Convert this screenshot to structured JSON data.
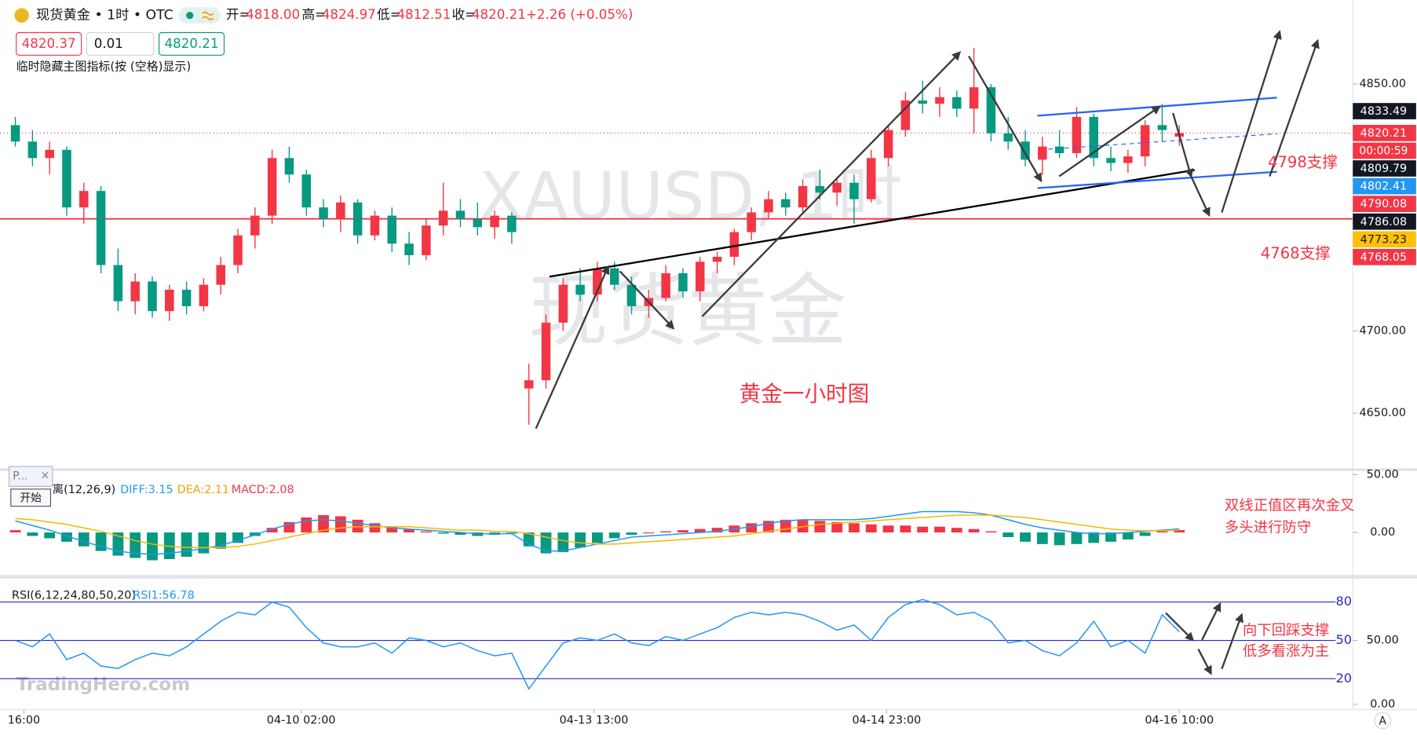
{
  "header": {
    "title": "现货黄金 • 1时 • OTC",
    "ohlc": [
      {
        "label": "开=",
        "value": "4818.00"
      },
      {
        "label": "高=",
        "value": "4824.97"
      },
      {
        "label": "低=",
        "value": "4812.51"
      },
      {
        "label": "收=",
        "value": "4820.21"
      }
    ],
    "change": "+2.26 (+0.05%)",
    "bid": "4820.37",
    "size": "0.01",
    "ask": "4820.21",
    "hint": "临时隐藏主图指标(按 (空格)显示)"
  },
  "watermark": {
    "symbol": "XAUUSD, 1时",
    "name": "现货黄金"
  },
  "popup": {
    "title": "P...",
    "close": "×",
    "button": "开始"
  },
  "footer": {
    "logo": "TradingHero.com",
    "auto": "A"
  },
  "chart_data": {
    "type": "candlestick",
    "up_color": "#f23645",
    "down_color": "#089981",
    "candles": [
      [
        4825,
        4830,
        4812,
        4815
      ],
      [
        4815,
        4822,
        4800,
        4805
      ],
      [
        4805,
        4815,
        4795,
        4810
      ],
      [
        4810,
        4812,
        4770,
        4775
      ],
      [
        4775,
        4790,
        4765,
        4785
      ],
      [
        4785,
        4788,
        4735,
        4740
      ],
      [
        4740,
        4750,
        4712,
        4718
      ],
      [
        4718,
        4735,
        4710,
        4730
      ],
      [
        4730,
        4733,
        4708,
        4712
      ],
      [
        4712,
        4728,
        4706,
        4725
      ],
      [
        4725,
        4730,
        4710,
        4715
      ],
      [
        4715,
        4732,
        4712,
        4728
      ],
      [
        4728,
        4745,
        4722,
        4740
      ],
      [
        4740,
        4762,
        4735,
        4758
      ],
      [
        4758,
        4775,
        4750,
        4770
      ],
      [
        4770,
        4810,
        4765,
        4805
      ],
      [
        4805,
        4812,
        4790,
        4795
      ],
      [
        4795,
        4798,
        4770,
        4775
      ],
      [
        4775,
        4780,
        4763,
        4768
      ],
      [
        4768,
        4782,
        4760,
        4778
      ],
      [
        4778,
        4780,
        4753,
        4758
      ],
      [
        4758,
        4773,
        4755,
        4770
      ],
      [
        4770,
        4775,
        4748,
        4753
      ],
      [
        4753,
        4760,
        4740,
        4746
      ],
      [
        4746,
        4768,
        4743,
        4764
      ],
      [
        4764,
        4790,
        4758,
        4773
      ],
      [
        4773,
        4780,
        4763,
        4768
      ],
      [
        4768,
        4778,
        4758,
        4763
      ],
      [
        4763,
        4773,
        4756,
        4770
      ],
      [
        4770,
        4772,
        4753,
        4760
      ],
      [
        4665,
        4680,
        4643,
        4670
      ],
      [
        4670,
        4710,
        4665,
        4705
      ],
      [
        4705,
        4732,
        4700,
        4728
      ],
      [
        4728,
        4738,
        4718,
        4722
      ],
      [
        4722,
        4742,
        4718,
        4738
      ],
      [
        4738,
        4742,
        4725,
        4728
      ],
      [
        4728,
        4733,
        4710,
        4715
      ],
      [
        4715,
        4725,
        4708,
        4720
      ],
      [
        4720,
        4740,
        4718,
        4735
      ],
      [
        4735,
        4738,
        4720,
        4724
      ],
      [
        4724,
        4745,
        4718,
        4742
      ],
      [
        4742,
        4748,
        4735,
        4745
      ],
      [
        4745,
        4762,
        4740,
        4760
      ],
      [
        4760,
        4775,
        4755,
        4772
      ],
      [
        4772,
        4785,
        4768,
        4780
      ],
      [
        4780,
        4784,
        4770,
        4775
      ],
      [
        4775,
        4792,
        4772,
        4788
      ],
      [
        4788,
        4798,
        4780,
        4784
      ],
      [
        4784,
        4792,
        4776,
        4790
      ],
      [
        4790,
        4795,
        4765,
        4780
      ],
      [
        4780,
        4810,
        4778,
        4805
      ],
      [
        4805,
        4825,
        4800,
        4822
      ],
      [
        4822,
        4845,
        4818,
        4840
      ],
      [
        4840,
        4852,
        4832,
        4838
      ],
      [
        4838,
        4848,
        4830,
        4842
      ],
      [
        4842,
        4846,
        4830,
        4835
      ],
      [
        4835,
        4872,
        4820,
        4848
      ],
      [
        4848,
        4850,
        4815,
        4820
      ],
      [
        4820,
        4830,
        4810,
        4815
      ],
      [
        4815,
        4822,
        4800,
        4804
      ],
      [
        4804,
        4818,
        4795,
        4812
      ],
      [
        4812,
        4822,
        4805,
        4808
      ],
      [
        4808,
        4836,
        4805,
        4830
      ],
      [
        4830,
        4832,
        4800,
        4805
      ],
      [
        4805,
        4812,
        4797,
        4802
      ],
      [
        4802,
        4810,
        4796,
        4806
      ],
      [
        4806,
        4828,
        4800,
        4825
      ],
      [
        4825,
        4838,
        4815,
        4822
      ],
      [
        4818.0,
        4824.97,
        4812.51,
        4820.21
      ]
    ],
    "ylim": [
      4616.5,
      4901
    ],
    "yticks": [
      {
        "value": 4850,
        "label": "4850.00"
      },
      {
        "value": 4700,
        "label": "4700.00"
      },
      {
        "value": 4650,
        "label": "4650.00"
      }
    ],
    "xticks": [
      {
        "value": 0.5,
        "label": "16:00"
      },
      {
        "value": 16.7,
        "label": "04-10 02:00"
      },
      {
        "value": 33.8,
        "label": "04-13 13:00"
      },
      {
        "value": 50.9,
        "label": "04-14 23:00"
      },
      {
        "value": 68,
        "label": "04-16 10:00"
      }
    ],
    "price_tags": [
      {
        "value": 4833.49,
        "color": "#131722"
      },
      {
        "value": 4820.21,
        "color": "#f23645",
        "line": "dotted",
        "countdown": "00:00:59"
      },
      {
        "value": 4809.79,
        "color": "#131722"
      },
      {
        "value": 4802.41,
        "color": "#2196f3"
      },
      {
        "value": 4790.08,
        "color": "#f23645"
      },
      {
        "value": 4786.08,
        "color": "#131722"
      },
      {
        "value": 4773.23,
        "color": "#ffc107",
        "text_color": "#131722"
      },
      {
        "value": 4768.05,
        "color": "#f23645",
        "line": "solid"
      }
    ],
    "annotations": [
      "黄金一小时图",
      "4798支撑",
      "4768支撑",
      "双线正值区再次金叉",
      "多头进行防守",
      "向下回踩支撑",
      "低多看涨为主"
    ],
    "macd": {
      "title": "离(12,26,9)",
      "diff_label": "DIFF:3.15",
      "dea_label": "DEA:2.11",
      "macd_label": "MACD:2.08",
      "diff_color": "#2196f3",
      "dea_color": "#f5b800",
      "hist": [
        2,
        -3,
        -5,
        -8,
        -12,
        -16,
        -20,
        -22,
        -24,
        -23,
        -21,
        -18,
        -14,
        -9,
        -3,
        4,
        9,
        13,
        15,
        14,
        11,
        8,
        5,
        3,
        1,
        -1,
        -2,
        -3,
        -2,
        -1,
        -12,
        -18,
        -17,
        -13,
        -9,
        -5,
        -2,
        0,
        1,
        2,
        3,
        4,
        6,
        8,
        10,
        11,
        11,
        10,
        9,
        8,
        7,
        6,
        6,
        5,
        5,
        4,
        3,
        1,
        -4,
        -8,
        -10,
        -11,
        -10,
        -9,
        -8,
        -6,
        -3,
        1,
        2.08
      ],
      "diff": [
        10,
        6,
        2,
        -3,
        -8,
        -12,
        -16,
        -18,
        -19,
        -18,
        -16,
        -14,
        -11,
        -7,
        -2,
        3,
        7,
        10,
        11,
        10,
        8,
        6,
        4,
        3,
        2,
        1,
        0,
        -1,
        -1,
        -1,
        -10,
        -16,
        -16,
        -13,
        -10,
        -7,
        -4,
        -3,
        -2,
        -1,
        0,
        1,
        3,
        5,
        8,
        10,
        11,
        11,
        11,
        11,
        12,
        14,
        16,
        18,
        18,
        18,
        17,
        15,
        11,
        7,
        4,
        2,
        0,
        -1,
        -1,
        0,
        1,
        2,
        3.15
      ],
      "dea": [
        12,
        11,
        9,
        7,
        4,
        1,
        -3,
        -7,
        -10,
        -12,
        -13,
        -13,
        -13,
        -12,
        -10,
        -7,
        -4,
        -1,
        2,
        4,
        5,
        5,
        5,
        5,
        4,
        3,
        2,
        2,
        1,
        1,
        -1,
        -4,
        -7,
        -9,
        -10,
        -10,
        -9,
        -8,
        -7,
        -6,
        -5,
        -4,
        -3,
        -1,
        1,
        3,
        5,
        7,
        8,
        9,
        10,
        11,
        12,
        13,
        14,
        15,
        15,
        15,
        14,
        13,
        11,
        9,
        7,
        5,
        3,
        2,
        1.5,
        1.6,
        2.11
      ],
      "ylim": [
        -36.7,
        53.1
      ],
      "yticks": [
        {
          "value": 50,
          "label": "50.00"
        },
        {
          "value": 0,
          "label": "0.00"
        }
      ]
    },
    "rsi": {
      "title": "RSI(6,12,24,80,50,20)",
      "legend": "RSI1:56.78",
      "color": "#2196f3",
      "values": [
        50,
        45,
        55,
        35,
        40,
        30,
        28,
        35,
        40,
        38,
        45,
        55,
        65,
        72,
        70,
        80,
        76,
        60,
        48,
        45,
        45,
        48,
        40,
        52,
        50,
        45,
        48,
        42,
        38,
        40,
        12,
        30,
        48,
        52,
        50,
        55,
        48,
        46,
        53,
        50,
        55,
        60,
        68,
        72,
        70,
        72,
        70,
        65,
        58,
        62,
        50,
        68,
        78,
        82,
        78,
        70,
        72,
        65,
        48,
        50,
        42,
        38,
        48,
        65,
        45,
        50,
        40,
        70,
        56.78
      ],
      "ylim": [
        -4.2,
        98.4
      ],
      "bands": [
        80,
        50,
        20
      ],
      "yticks": [
        {
          "value": 50,
          "label": "50.00"
        },
        {
          "value": 0,
          "label": "0.00"
        }
      ]
    }
  }
}
